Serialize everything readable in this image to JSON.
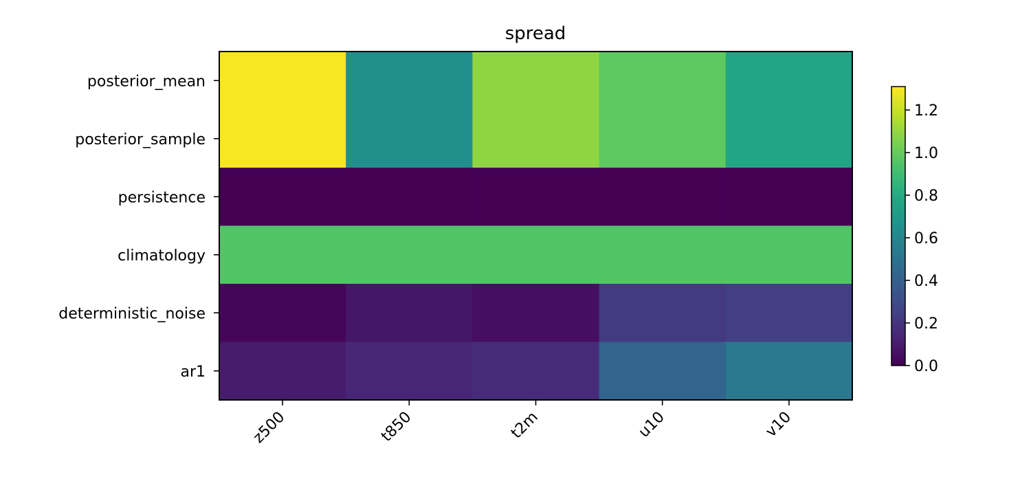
{
  "chart_data": {
    "type": "heatmap",
    "title": "spread",
    "x_categories": [
      "z500",
      "t850",
      "t2m",
      "u10",
      "v10"
    ],
    "y_categories": [
      "posterior_mean",
      "posterior_sample",
      "persistence",
      "climatology",
      "deterministic_noise",
      "ar1"
    ],
    "values": [
      [
        1.3,
        0.65,
        1.09,
        0.98,
        0.77
      ],
      [
        1.3,
        0.65,
        1.09,
        0.98,
        0.77
      ],
      [
        0.0,
        0.0,
        0.0,
        0.0,
        0.0
      ],
      [
        0.95,
        0.95,
        0.95,
        0.95,
        0.95
      ],
      [
        0.02,
        0.08,
        0.05,
        0.22,
        0.24
      ],
      [
        0.1,
        0.14,
        0.16,
        0.42,
        0.53
      ]
    ],
    "colormap": "viridis",
    "vmin": 0.0,
    "vmax": 1.31,
    "colorbar_ticks": [
      "0.0",
      "0.2",
      "0.4",
      "0.6",
      "0.8",
      "1.0",
      "1.2"
    ],
    "x_tick_rotation_deg": 45
  }
}
